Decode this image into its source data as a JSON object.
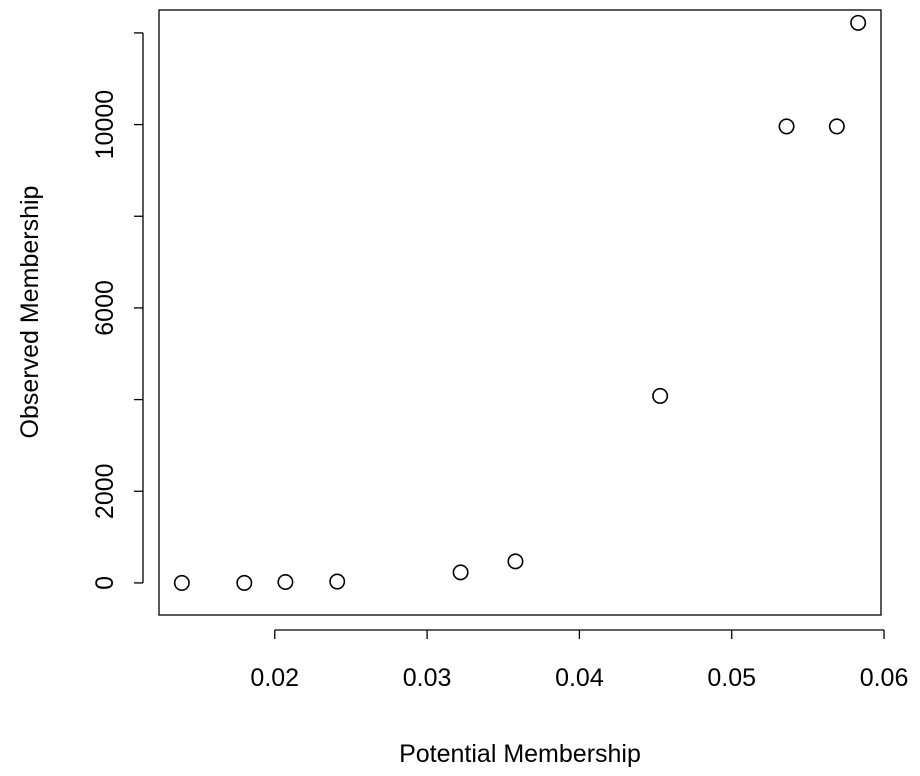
{
  "chart_data": {
    "type": "scatter",
    "title": "",
    "xlabel": "Potential Membership",
    "ylabel": "Observed Membership",
    "xlim": [
      0.0124,
      0.0598
    ],
    "ylim": [
      -700,
      12500
    ],
    "x_ticks": [
      0.02,
      0.03,
      0.04,
      0.05,
      0.06
    ],
    "x_tick_labels": [
      "0.02",
      "0.03",
      "0.04",
      "0.05",
      "0.06"
    ],
    "y_ticks": [
      0,
      2000,
      4000,
      6000,
      8000,
      10000,
      12000
    ],
    "y_tick_labels": [
      "0",
      "2000",
      "",
      "6000",
      "",
      "10000",
      ""
    ],
    "grid": false,
    "marker": "open-circle",
    "points": [
      {
        "x": 0.0139,
        "y": 0
      },
      {
        "x": 0.018,
        "y": 0
      },
      {
        "x": 0.0207,
        "y": 20
      },
      {
        "x": 0.0241,
        "y": 30
      },
      {
        "x": 0.0322,
        "y": 230
      },
      {
        "x": 0.0358,
        "y": 470
      },
      {
        "x": 0.0453,
        "y": 4080
      },
      {
        "x": 0.0536,
        "y": 9960
      },
      {
        "x": 0.0569,
        "y": 9960
      },
      {
        "x": 0.0583,
        "y": 12220
      }
    ]
  }
}
